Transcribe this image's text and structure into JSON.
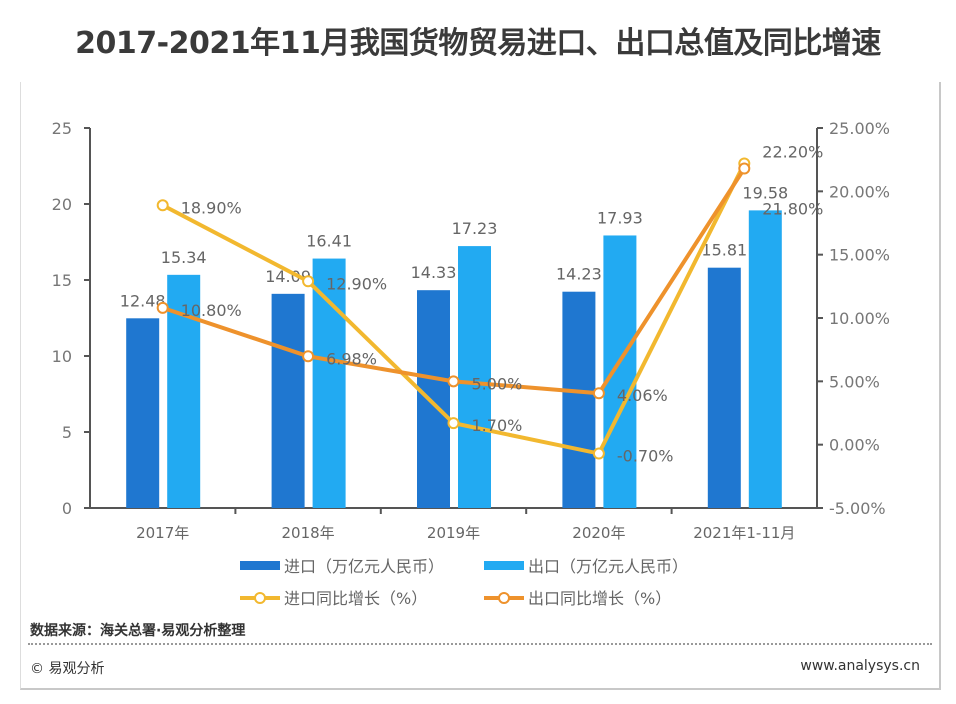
{
  "title": "2017-2021年11月我国货物贸易进口、出口总值及同比增速",
  "chart_data": {
    "type": "bar+line",
    "categories": [
      "2017年",
      "2018年",
      "2019年",
      "2020年",
      "2021年1-11月"
    ],
    "left_axis": {
      "ylim": [
        0,
        25
      ],
      "ticks": [
        "0",
        "5",
        "10",
        "15",
        "20",
        "25"
      ]
    },
    "right_axis": {
      "ylim": [
        -5,
        25
      ],
      "ticks": [
        "-5.00%",
        "0.00%",
        "5.00%",
        "10.00%",
        "15.00%",
        "20.00%",
        "25.00%"
      ]
    },
    "bar_series": [
      {
        "name": "进口（万亿元人民币）",
        "color": "#1f77d0",
        "values": [
          12.48,
          14.09,
          14.33,
          14.23,
          15.81
        ]
      },
      {
        "name": "出口（万亿元人民币）",
        "color": "#22aaf2",
        "values": [
          15.34,
          16.41,
          17.23,
          17.93,
          19.58
        ]
      }
    ],
    "line_series": [
      {
        "name": "进口同比增长（%）",
        "color": "#f2b82f",
        "values": [
          18.9,
          12.9,
          1.7,
          -0.7,
          22.2
        ],
        "labels": [
          "18.90%",
          "12.90%",
          "1.70%",
          "-0.70%",
          "22.20%"
        ]
      },
      {
        "name": "出口同比增长（%）",
        "color": "#ee922c",
        "values": [
          10.8,
          6.98,
          5.0,
          4.06,
          21.8
        ],
        "labels": [
          "10.80%",
          "6.98%",
          "5.00%",
          "4.06%",
          "21.80%"
        ]
      }
    ],
    "legend_placement": "bottom",
    "grid": false
  },
  "footer": {
    "source": "数据来源：海关总署·易观分析整理",
    "copyright": "© 易观分析",
    "website": "www.analysys.cn"
  }
}
